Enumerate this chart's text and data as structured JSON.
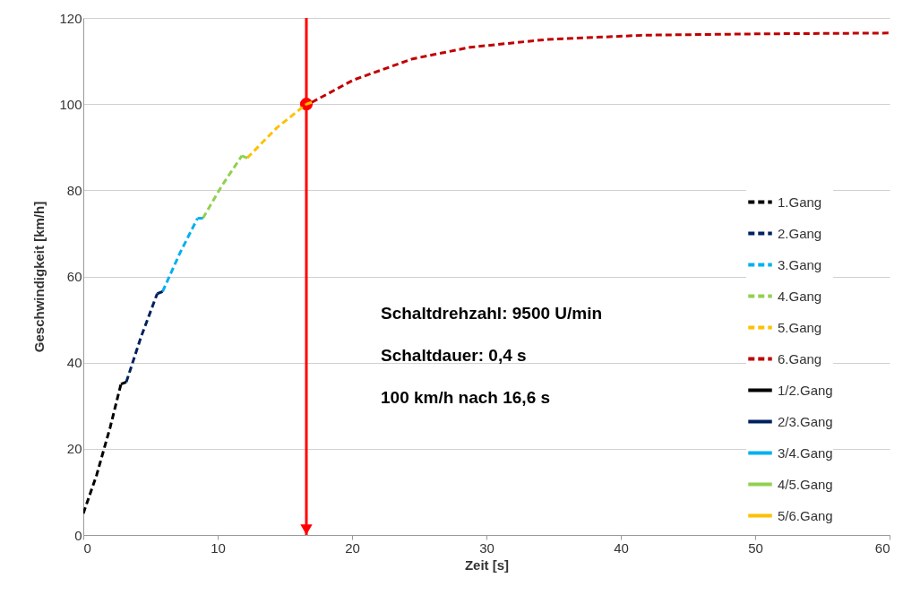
{
  "chart_data": {
    "type": "line",
    "xlabel": "Zeit [s]",
    "ylabel": "Geschwindigkeit [km/h]",
    "xlim": [
      0,
      60
    ],
    "xticks": [
      0,
      10,
      20,
      30,
      40,
      50,
      60
    ],
    "ylim": [
      0,
      120
    ],
    "yticks": [
      0,
      20,
      40,
      60,
      80,
      100,
      120
    ],
    "grid": "y",
    "legend": "right",
    "series": [
      {
        "name": "1.Gang",
        "color": "#000000",
        "line_style": "dashed",
        "x": [
          0,
          1,
          2,
          2.8
        ],
        "values": [
          5,
          14,
          25,
          35
        ]
      },
      {
        "name": "2.Gang",
        "color": "#002060",
        "line_style": "dashed",
        "x": [
          3.2,
          4.3,
          5.5
        ],
        "values": [
          35.5,
          46,
          56
        ]
      },
      {
        "name": "3.Gang",
        "color": "#00b0f0",
        "line_style": "dashed",
        "x": [
          5.9,
          7.2,
          8.5
        ],
        "values": [
          56.5,
          65.5,
          73.5
        ]
      },
      {
        "name": "4.Gang",
        "color": "#92d050",
        "line_style": "dashed",
        "x": [
          8.9,
          10.3,
          11.8
        ],
        "values": [
          73.5,
          81,
          88
        ]
      },
      {
        "name": "5.Gang",
        "color": "#ffc000",
        "line_style": "dashed",
        "x": [
          12.2,
          14.4,
          16.6
        ],
        "values": [
          87.5,
          94.5,
          100
        ]
      },
      {
        "name": "6.Gang",
        "color": "#c00000",
        "line_style": "dashed",
        "x": [
          17.0,
          20.1,
          24.5,
          28.8,
          34.5,
          41.8,
          50.4,
          60
        ],
        "values": [
          100.4,
          105.6,
          110.5,
          113.2,
          115,
          116,
          116.3,
          116.5
        ]
      },
      {
        "name": "1/2.Gang",
        "color": "#000000",
        "line_style": "solid",
        "x": [
          2.8,
          3.2
        ],
        "values": [
          35,
          35.5
        ]
      },
      {
        "name": "2/3.Gang",
        "color": "#002060",
        "line_style": "solid",
        "x": [
          5.5,
          5.9
        ],
        "values": [
          56,
          56.5
        ]
      },
      {
        "name": "3/4.Gang",
        "color": "#00b0f0",
        "line_style": "solid",
        "x": [
          8.5,
          8.9
        ],
        "values": [
          73.5,
          73.5
        ]
      },
      {
        "name": "4/5.Gang",
        "color": "#92d050",
        "line_style": "solid",
        "x": [
          11.8,
          12.2
        ],
        "values": [
          88,
          87.5
        ]
      },
      {
        "name": "5/6.Gang",
        "color": "#ffc000",
        "line_style": "solid",
        "x": [
          16.6,
          17.0
        ],
        "values": [
          100,
          100.4
        ]
      },
      {
        "type": "scatter",
        "marker": "circle",
        "color": "#ff0000",
        "x": [
          16.6
        ],
        "values": [
          100
        ]
      }
    ],
    "ref_lines": [
      {
        "axis": "x",
        "value": 16.6,
        "color": "#ff0000"
      }
    ],
    "annotations": [
      "Schaltdrehzahl: 9500 U/min",
      "Schaltdauer: 0,4 s",
      "100 km/h nach 16,6 s"
    ]
  }
}
